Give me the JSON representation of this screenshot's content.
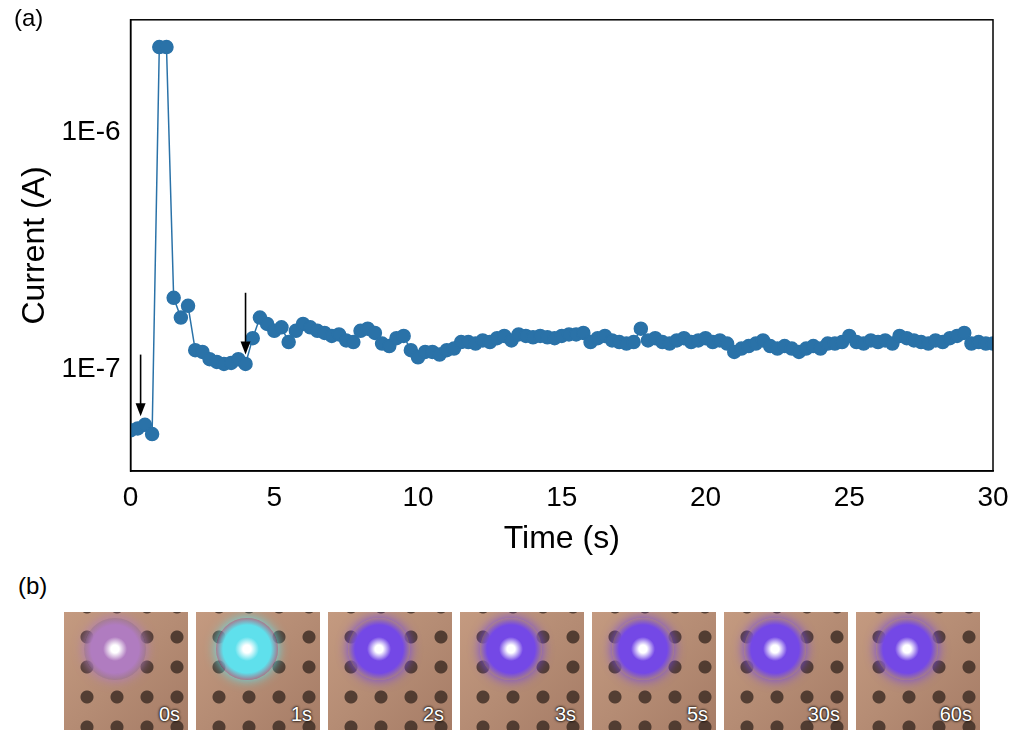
{
  "chart_data": {
    "type": "line",
    "panel_labels": [
      "(a)",
      "(b)"
    ],
    "x_label": "Time (s)",
    "y_label": "Current (A)",
    "log": "y",
    "grid": false,
    "marker": "circle",
    "color": "#2a72a8",
    "xlim": [
      0,
      30
    ],
    "xticks": [
      0,
      5,
      10,
      15,
      20,
      25,
      30
    ],
    "ylim": [
      3.7e-08,
      3e-06
    ],
    "yticks": [
      {
        "value": 1e-07,
        "label": "1E-7"
      },
      {
        "value": 1e-06,
        "label": "1E-6"
      }
    ],
    "x": [
      0,
      0.25,
      0.5,
      0.75,
      1,
      1.25,
      1.5,
      1.75,
      2,
      2.25,
      2.5,
      2.75,
      3,
      3.25,
      3.5,
      3.75,
      4,
      4.25,
      4.5,
      4.75,
      5,
      5.25,
      5.5,
      5.75,
      6,
      6.25,
      6.5,
      6.75,
      7,
      7.25,
      7.5,
      7.75,
      8,
      8.25,
      8.5,
      8.75,
      9,
      9.25,
      9.5,
      9.75,
      10,
      10.25,
      10.5,
      10.75,
      11,
      11.25,
      11.5,
      11.75,
      12,
      12.25,
      12.5,
      12.75,
      13,
      13.25,
      13.5,
      13.75,
      14,
      14.25,
      14.5,
      14.75,
      15,
      15.25,
      15.5,
      15.75,
      16,
      16.25,
      16.5,
      16.75,
      17,
      17.25,
      17.5,
      17.75,
      18,
      18.25,
      18.5,
      18.75,
      19,
      19.25,
      19.5,
      19.75,
      20,
      20.25,
      20.5,
      20.75,
      21,
      21.25,
      21.5,
      21.75,
      22,
      22.25,
      22.5,
      22.75,
      23,
      23.25,
      23.5,
      23.75,
      24,
      24.25,
      24.5,
      24.75,
      25,
      25.25,
      25.5,
      25.75,
      26,
      26.25,
      26.5,
      26.75,
      27,
      27.25,
      27.5,
      27.75,
      28,
      28.25,
      28.5,
      28.75,
      29,
      29.25,
      29.5,
      29.75,
      30
    ],
    "values": [
      5.5e-08,
      5.6e-08,
      5.8e-08,
      5.3e-08,
      2.3e-06,
      2.3e-06,
      2e-07,
      1.65e-07,
      1.85e-07,
      1.2e-07,
      1.18e-07,
      1.1e-07,
      1.07e-07,
      1.05e-07,
      1.06e-07,
      1.1e-07,
      1.05e-07,
      1.35e-07,
      1.65e-07,
      1.55e-07,
      1.45e-07,
      1.5e-07,
      1.3e-07,
      1.45e-07,
      1.55e-07,
      1.5e-07,
      1.45e-07,
      1.42e-07,
      1.38e-07,
      1.4e-07,
      1.32e-07,
      1.3e-07,
      1.45e-07,
      1.48e-07,
      1.42e-07,
      1.28e-07,
      1.25e-07,
      1.35e-07,
      1.38e-07,
      1.2e-07,
      1.12e-07,
      1.18e-07,
      1.18e-07,
      1.15e-07,
      1.2e-07,
      1.22e-07,
      1.3e-07,
      1.3e-07,
      1.28e-07,
      1.32e-07,
      1.3e-07,
      1.35e-07,
      1.38e-07,
      1.32e-07,
      1.4e-07,
      1.38e-07,
      1.36e-07,
      1.38e-07,
      1.36e-07,
      1.35e-07,
      1.38e-07,
      1.4e-07,
      1.4e-07,
      1.42e-07,
      1.3e-07,
      1.35e-07,
      1.38e-07,
      1.32e-07,
      1.3e-07,
      1.28e-07,
      1.3e-07,
      1.48e-07,
      1.32e-07,
      1.35e-07,
      1.3e-07,
      1.28e-07,
      1.32e-07,
      1.35e-07,
      1.3e-07,
      1.32e-07,
      1.35e-07,
      1.3e-07,
      1.32e-07,
      1.28e-07,
      1.18e-07,
      1.22e-07,
      1.25e-07,
      1.28e-07,
      1.32e-07,
      1.25e-07,
      1.22e-07,
      1.25e-07,
      1.22e-07,
      1.18e-07,
      1.22e-07,
      1.25e-07,
      1.22e-07,
      1.28e-07,
      1.28e-07,
      1.3e-07,
      1.38e-07,
      1.3e-07,
      1.28e-07,
      1.32e-07,
      1.3e-07,
      1.32e-07,
      1.28e-07,
      1.38e-07,
      1.35e-07,
      1.32e-07,
      1.3e-07,
      1.28e-07,
      1.32e-07,
      1.3e-07,
      1.35e-07,
      1.38e-07,
      1.42e-07,
      1.28e-07,
      1.3e-07,
      1.28e-07,
      1.28e-07
    ],
    "arrows": [
      {
        "x": 0.35,
        "y_start": 1.15e-07,
        "y_end": 6.3e-08
      },
      {
        "x": 4.0,
        "y_start": 2.1e-07,
        "y_end": 1.15e-07
      }
    ],
    "photos": [
      {
        "label": "0s",
        "color": "#b07cc0"
      },
      {
        "label": "1s",
        "color": "#5fe0ec"
      },
      {
        "label": "2s",
        "color": "#7448e6"
      },
      {
        "label": "3s",
        "color": "#7448e6"
      },
      {
        "label": "5s",
        "color": "#7448e6"
      },
      {
        "label": "30s",
        "color": "#7448e6"
      },
      {
        "label": "60s",
        "color": "#7448e6"
      }
    ]
  }
}
